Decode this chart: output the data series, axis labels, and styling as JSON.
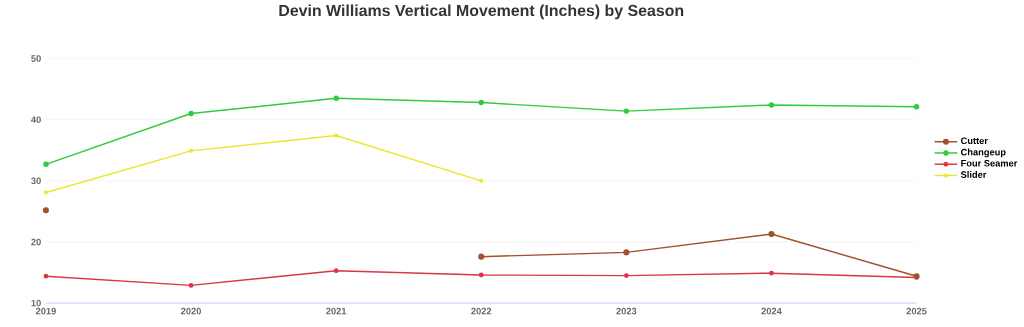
{
  "chart_data": {
    "type": "line",
    "title": "Devin Williams Vertical Movement (Inches) by Season",
    "x": [
      2019,
      2020,
      2021,
      2022,
      2023,
      2024,
      2025
    ],
    "series": [
      {
        "name": "Cutter",
        "color": "#a0522d",
        "values": [
          25.2,
          null,
          null,
          17.6,
          18.3,
          21.3,
          14.4
        ]
      },
      {
        "name": "Changeup",
        "color": "#2ecc40",
        "values": [
          32.7,
          41.0,
          43.5,
          42.8,
          41.4,
          42.4,
          42.1
        ]
      },
      {
        "name": "Four Seamer",
        "color": "#dc3545",
        "values": [
          14.4,
          12.9,
          15.3,
          14.6,
          14.5,
          14.9,
          14.2
        ]
      },
      {
        "name": "Slider",
        "color": "#e8e82e",
        "values": [
          28.1,
          34.9,
          37.4,
          30.0,
          null,
          null,
          null
        ]
      }
    ],
    "xlim": [
      2019,
      2025
    ],
    "xticks": [
      2019,
      2020,
      2021,
      2022,
      2023,
      2024,
      2025
    ],
    "ylim": [
      10,
      50
    ],
    "yticks": [
      10,
      20,
      30,
      40,
      50
    ],
    "grid": "y",
    "legend": "right",
    "marker": "circle",
    "line_style": "solid"
  }
}
